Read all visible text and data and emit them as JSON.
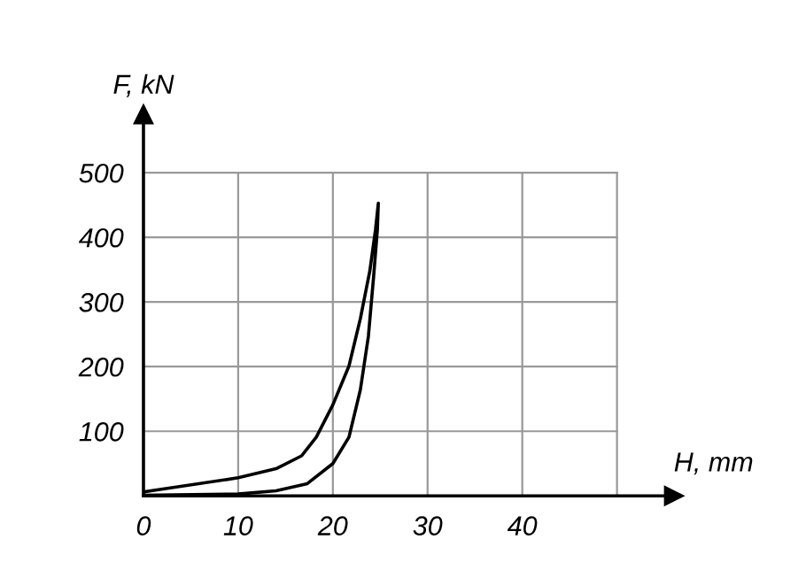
{
  "chart_data": {
    "type": "line",
    "xlabel": "H, mm",
    "ylabel": "F, kN",
    "series": [
      {
        "color": "#000000",
        "x": [
          0,
          10,
          14,
          16.7,
          18.25,
          20,
          21.7,
          22.9,
          23.9,
          24.5,
          24.8,
          24.7,
          24.3,
          23.75,
          22.9,
          21.7,
          20,
          17.3,
          14,
          10,
          0
        ],
        "values": [
          6,
          28,
          42,
          62,
          91,
          141,
          201,
          274,
          348,
          412,
          453,
          412,
          339,
          247,
          164,
          91,
          50,
          19,
          8,
          3,
          1
        ]
      }
    ],
    "xlim": [
      0,
      56
    ],
    "ylim": [
      0,
      590
    ],
    "xticks": [
      0,
      10,
      20,
      30,
      40,
      {
        "value": 50,
        "label": null
      }
    ],
    "yticks": [
      100,
      200,
      300,
      400,
      500
    ],
    "grid": true,
    "legend": false,
    "marker": "none",
    "line_style": "solid"
  }
}
